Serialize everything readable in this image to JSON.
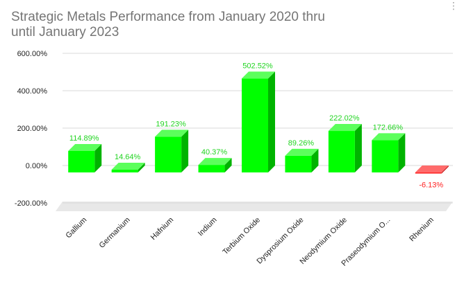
{
  "chart_data": {
    "type": "bar",
    "title": "Strategic Metals Performance from January 2020 thru until January 2023",
    "categories": [
      "Gallium",
      "Germanium",
      "Hafnium",
      "Indium",
      "Terbium Oxide",
      "Dysprosium Oxide",
      "Neodymium Oxide",
      "Praseodymium O...",
      "Rhenium"
    ],
    "values": [
      114.89,
      14.64,
      191.23,
      40.37,
      502.52,
      89.26,
      222.02,
      172.66,
      -6.13
    ],
    "data_labels": [
      "114.89%",
      "14.64%",
      "191.23%",
      "40.37%",
      "502.52%",
      "89.26%",
      "222.02%",
      "172.66%",
      "-6.13%"
    ],
    "ylim": [
      -200,
      600
    ],
    "yticks": [
      600,
      400,
      200,
      0,
      -200
    ],
    "ytick_labels": [
      "600.00%",
      "400.00%",
      "200.00%",
      "0.00%",
      "-200.00%"
    ],
    "xlabel": "",
    "ylabel": "",
    "grid": true,
    "legend": "none",
    "colors": {
      "positive_front": "#00ff00",
      "positive_side": "#00b300",
      "positive_top": "#5cff5c",
      "positive_label": "#1fd41f",
      "negative_front": "#ff2a2a",
      "negative_side": "#c21a1a",
      "negative_top": "#ff6b6b",
      "negative_label": "#ff2020",
      "gridline": "#d9d9d9",
      "floor": "#e8e8e8"
    }
  }
}
